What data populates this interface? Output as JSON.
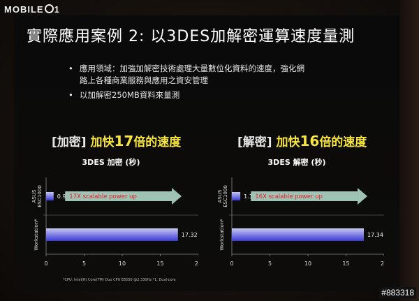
{
  "watermark_logo": "MOBILE01",
  "watermark_id": "#883318",
  "slide_title": "實際應用案例 2: 以3DES加解密運算速度量測",
  "bullets": [
    "應用領域：加強加解密技術處理大量數位化資料的速度，強化網路上各種商業服務與應用之資安管理",
    "以加解密250MB資料來量測"
  ],
  "headings": {
    "left": {
      "bracket": "[加密]",
      "pre": " 加快",
      "num": "17",
      "post": "倍的速度"
    },
    "right": {
      "bracket": "[解密]",
      "pre": " 加快",
      "num": "16",
      "post": "倍的速度"
    }
  },
  "footnote": "*CPU: Intel(R) Core(TM) Duo CPU E6550 @2.330Hz *1, Dual-core",
  "colors": {
    "bar_blue": "#3a3ad8",
    "bar_light": "#c8c8f0",
    "arrow_fill": "#9ec2b4",
    "arrow_text": "#e8202a",
    "heading_yellow": "#f7e53a"
  },
  "chart_data": [
    {
      "type": "bar",
      "orientation": "horizontal",
      "title": "3DES 加密 (秒)",
      "categories": [
        "ASUS ESC1000",
        "Workstation*"
      ],
      "values": [
        0.99,
        17.32
      ],
      "value_labels": [
        "0.99",
        "17.32"
      ],
      "xlim": [
        0,
        20
      ],
      "xticks": [
        0,
        5,
        10,
        15,
        20
      ],
      "annotation": "17X scalable power up"
    },
    {
      "type": "bar",
      "orientation": "horizontal",
      "title": "3DES 解密 (秒)",
      "categories": [
        "ASUS ESC1000",
        "Workstation*"
      ],
      "values": [
        1.11,
        17.34
      ],
      "value_labels": [
        "1.11",
        "17.34"
      ],
      "xlim": [
        0,
        20
      ],
      "xticks": [
        0,
        5,
        10,
        15,
        20
      ],
      "annotation": "16X scalable power up"
    }
  ]
}
